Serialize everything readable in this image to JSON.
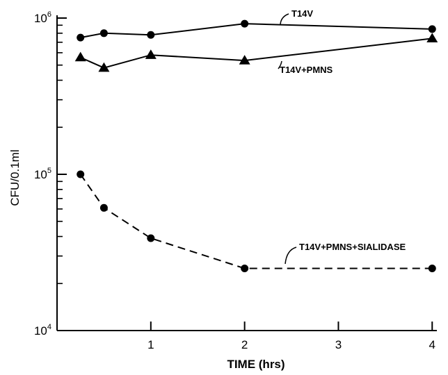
{
  "chart_data": {
    "type": "line",
    "title": "",
    "xlabel": "TIME (hrs)",
    "ylabel": "CFU/0.1ml",
    "y_scale": "log",
    "xlim": [
      0,
      4.05
    ],
    "ylim": [
      10000,
      1000000
    ],
    "x_ticks": [
      1,
      2,
      3,
      4
    ],
    "x_tick_labels": [
      "1",
      "2",
      "3",
      "4"
    ],
    "y_major_ticks": [
      10000,
      100000,
      1000000
    ],
    "y_tick_labels": [
      {
        "base": "10",
        "exp": "4"
      },
      {
        "base": "10",
        "exp": "5"
      },
      {
        "base": "10",
        "exp": "6"
      }
    ],
    "grid": false,
    "legend": "none (series labelled by annotations with pointer lines)",
    "series": [
      {
        "name": "T14V",
        "marker": "circle",
        "line": "solid",
        "x": [
          0.25,
          0.5,
          1,
          2,
          4
        ],
        "y": [
          750000,
          800000,
          780000,
          920000,
          850000
        ]
      },
      {
        "name": "T14V+PMNS",
        "marker": "triangle",
        "line": "solid",
        "x": [
          0.25,
          0.5,
          1,
          2,
          4
        ],
        "y": [
          560000,
          480000,
          580000,
          535000,
          740000
        ]
      },
      {
        "name": "T14V+PMNS+SIALIDASE",
        "marker": "circle",
        "line": "dashed",
        "x": [
          0.25,
          0.5,
          1,
          2,
          4
        ],
        "y": [
          100000,
          61000,
          39000,
          25000,
          25000
        ]
      }
    ]
  }
}
